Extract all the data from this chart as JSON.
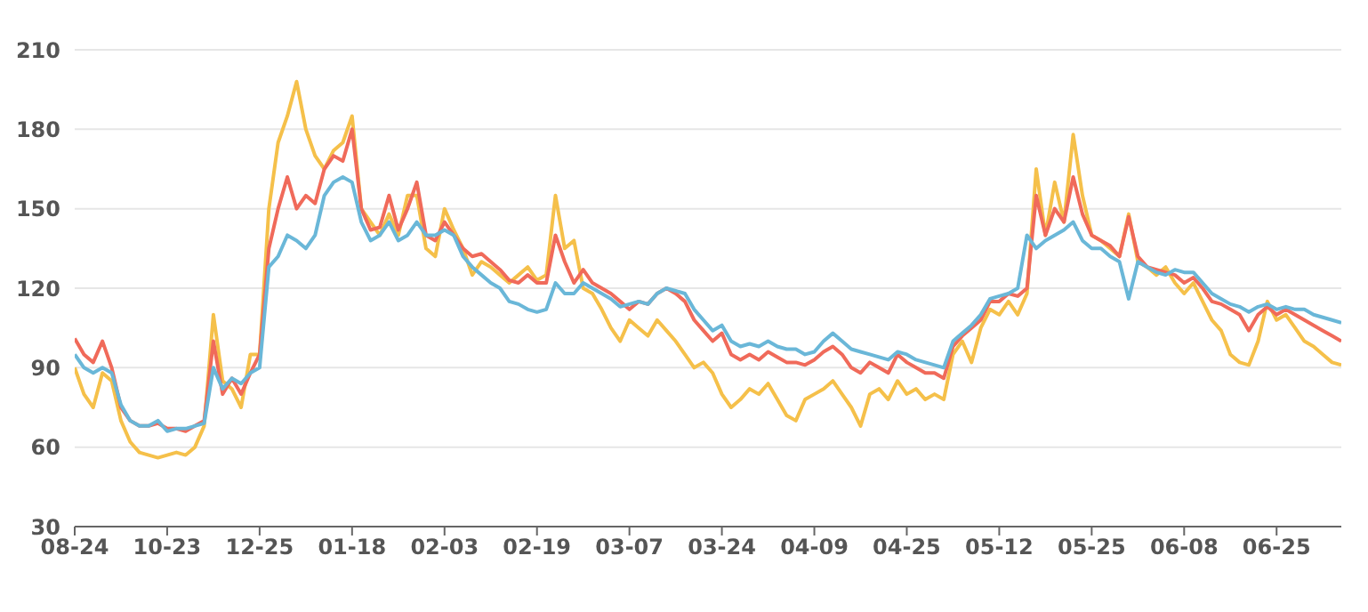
{
  "chart_data": {
    "type": "line",
    "categories": [
      "08-24",
      null,
      null,
      null,
      null,
      null,
      null,
      null,
      null,
      null,
      "10-23",
      null,
      null,
      null,
      null,
      null,
      null,
      null,
      null,
      null,
      "12-25",
      null,
      null,
      null,
      null,
      null,
      null,
      null,
      null,
      null,
      "01-18",
      null,
      null,
      null,
      null,
      null,
      null,
      null,
      null,
      null,
      "02-03",
      null,
      null,
      null,
      null,
      null,
      null,
      null,
      null,
      null,
      "02-19",
      null,
      null,
      null,
      null,
      null,
      null,
      null,
      null,
      null,
      "03-07",
      null,
      null,
      null,
      null,
      null,
      null,
      null,
      null,
      null,
      "03-24",
      null,
      null,
      null,
      null,
      null,
      null,
      null,
      null,
      null,
      "04-09",
      null,
      null,
      null,
      null,
      null,
      null,
      null,
      null,
      null,
      "04-25",
      null,
      null,
      null,
      null,
      null,
      null,
      null,
      null,
      null,
      "05-12",
      null,
      null,
      null,
      null,
      null,
      null,
      null,
      null,
      null,
      "05-25",
      null,
      null,
      null,
      null,
      null,
      null,
      null,
      null,
      null,
      "06-08",
      null,
      null,
      null,
      null,
      null,
      null,
      null,
      null,
      null,
      "06-25",
      null,
      null,
      null,
      null,
      null,
      null,
      null
    ],
    "series": [
      {
        "color": "#f5c04a",
        "values": [
          90,
          80,
          75,
          88,
          85,
          70,
          62,
          58,
          57,
          56,
          57,
          58,
          57,
          60,
          68,
          110,
          85,
          82,
          75,
          95,
          95,
          150,
          175,
          185,
          198,
          180,
          170,
          165,
          172,
          175,
          185,
          150,
          145,
          140,
          148,
          140,
          155,
          155,
          135,
          132,
          150,
          142,
          135,
          125,
          130,
          128,
          125,
          122,
          125,
          128,
          123,
          125,
          155,
          135,
          138,
          120,
          118,
          112,
          105,
          100,
          108,
          105,
          102,
          108,
          104,
          100,
          95,
          90,
          92,
          88,
          80,
          75,
          78,
          82,
          80,
          84,
          78,
          72,
          70,
          78,
          80,
          82,
          85,
          80,
          75,
          68,
          80,
          82,
          78,
          85,
          80,
          82,
          78,
          80,
          78,
          95,
          100,
          92,
          105,
          112,
          110,
          115,
          110,
          118,
          165,
          140,
          160,
          145,
          178,
          155,
          140,
          138,
          135,
          132,
          148,
          130,
          128,
          125,
          128,
          122,
          118,
          122,
          115,
          108,
          104,
          95,
          92,
          91,
          100,
          115,
          108,
          110,
          105,
          100,
          98,
          95,
          92,
          91
        ]
      },
      {
        "color": "#f06a5a",
        "values": [
          101,
          95,
          92,
          100,
          90,
          75,
          70,
          68,
          68,
          69,
          67,
          67,
          66,
          68,
          70,
          100,
          80,
          86,
          80,
          88,
          95,
          135,
          150,
          162,
          150,
          155,
          152,
          165,
          170,
          168,
          180,
          150,
          142,
          143,
          155,
          142,
          150,
          160,
          140,
          138,
          145,
          140,
          135,
          132,
          133,
          130,
          127,
          123,
          122,
          125,
          122,
          122,
          140,
          130,
          122,
          127,
          122,
          120,
          118,
          115,
          112,
          115,
          114,
          118,
          120,
          118,
          115,
          108,
          104,
          100,
          103,
          95,
          93,
          95,
          93,
          96,
          94,
          92,
          92,
          91,
          93,
          96,
          98,
          95,
          90,
          88,
          92,
          90,
          88,
          95,
          92,
          90,
          88,
          88,
          86,
          98,
          102,
          105,
          108,
          115,
          115,
          118,
          117,
          120,
          155,
          140,
          150,
          145,
          162,
          148,
          140,
          138,
          136,
          132,
          147,
          132,
          128,
          127,
          126,
          125,
          122,
          124,
          120,
          115,
          114,
          112,
          110,
          104,
          110,
          113,
          110,
          112,
          110,
          108,
          106,
          104,
          102,
          100
        ]
      },
      {
        "color": "#6ab7d8",
        "values": [
          95,
          90,
          88,
          90,
          88,
          76,
          70,
          68,
          68,
          70,
          66,
          67,
          67,
          68,
          69,
          90,
          82,
          86,
          84,
          88,
          90,
          128,
          132,
          140,
          138,
          135,
          140,
          155,
          160,
          162,
          160,
          145,
          138,
          140,
          145,
          138,
          140,
          145,
          140,
          140,
          142,
          140,
          132,
          128,
          125,
          122,
          120,
          115,
          114,
          112,
          111,
          112,
          122,
          118,
          118,
          122,
          120,
          118,
          116,
          113,
          114,
          115,
          114,
          118,
          120,
          119,
          118,
          112,
          108,
          104,
          106,
          100,
          98,
          99,
          98,
          100,
          98,
          97,
          97,
          95,
          96,
          100,
          103,
          100,
          97,
          96,
          95,
          94,
          93,
          96,
          95,
          93,
          92,
          91,
          90,
          100,
          103,
          106,
          110,
          116,
          117,
          118,
          120,
          140,
          135,
          138,
          140,
          142,
          145,
          138,
          135,
          135,
          132,
          130,
          116,
          130,
          128,
          126,
          125,
          127,
          126,
          126,
          122,
          118,
          116,
          114,
          113,
          111,
          113,
          114,
          112,
          113,
          112,
          112,
          110,
          109,
          108,
          107
        ]
      }
    ],
    "ylim": [
      30,
      210
    ],
    "yticks": [
      30,
      60,
      90,
      120,
      150,
      180,
      210
    ],
    "grid": "y",
    "legend": false,
    "marker": "none",
    "line_style": "solid"
  }
}
